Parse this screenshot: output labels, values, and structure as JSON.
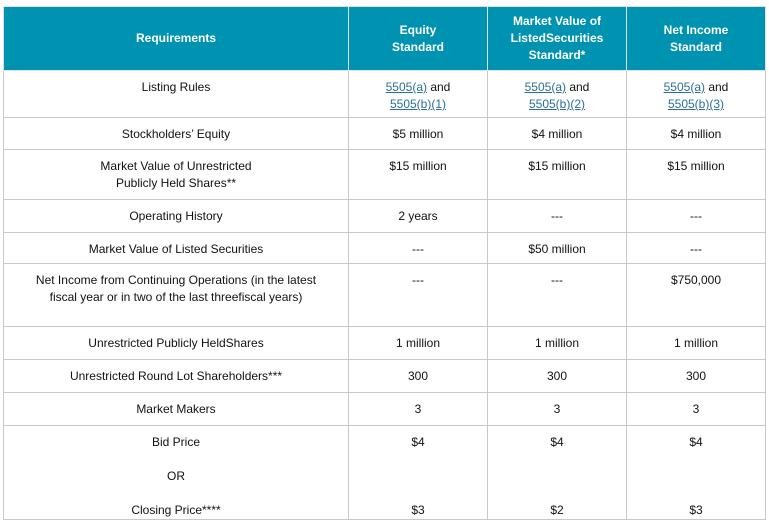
{
  "header": [
    "Requirements",
    "Equity\nStandard",
    "Market Value of\nListedSecurities\nStandard*",
    "Net Income\nStandard"
  ],
  "colors": {
    "header_bg": "#0093b1",
    "header_text": "#ffffff",
    "link": "#2a6f9a"
  },
  "listing_rules": {
    "label": "Listing Rules",
    "cells": [
      {
        "link1": "5505(a)",
        "and": " and ",
        "link2": "5505(b)(1)"
      },
      {
        "link1": "5505(a)",
        "and": " and ",
        "link2": "5505(b)(2)"
      },
      {
        "link1": "5505(a)",
        "and": " and ",
        "link2": "5505(b)(3)"
      }
    ]
  },
  "rows": [
    {
      "label": "Stockholders’ Equity",
      "values": [
        "$5 million",
        "$4 million",
        "$4 million"
      ]
    },
    {
      "label": "Market Value of Unrestricted\nPublicly Held Shares**",
      "values": [
        "$15 million",
        "$15 million",
        "$15 million"
      ]
    },
    {
      "label": "Operating History",
      "values": [
        "2 years",
        "---",
        "---"
      ]
    },
    {
      "label": "Market Value of Listed Securities",
      "values": [
        "---",
        "$50 million",
        "---"
      ]
    },
    {
      "label": "Net Income from Continuing  Operations (in the latest fiscal year or in two of the last threefiscal years)",
      "values": [
        "---",
        "---",
        "$750,000"
      ]
    },
    {
      "label": "Unrestricted Publicly HeldShares",
      "values": [
        "1 million",
        "1 million",
        "1 million"
      ]
    },
    {
      "label": "Unrestricted Round Lot Shareholders***",
      "values": [
        "300",
        "300",
        "300"
      ]
    },
    {
      "label": "Market Makers",
      "values": [
        "3",
        "3",
        "3"
      ]
    },
    {
      "label": "Bid Price\n\nOR\n\nClosing Price****",
      "values": [
        "$4\n\n\n\n$3",
        "$4\n\n\n\n$2",
        "$4\n\n\n\n$3"
      ]
    }
  ]
}
